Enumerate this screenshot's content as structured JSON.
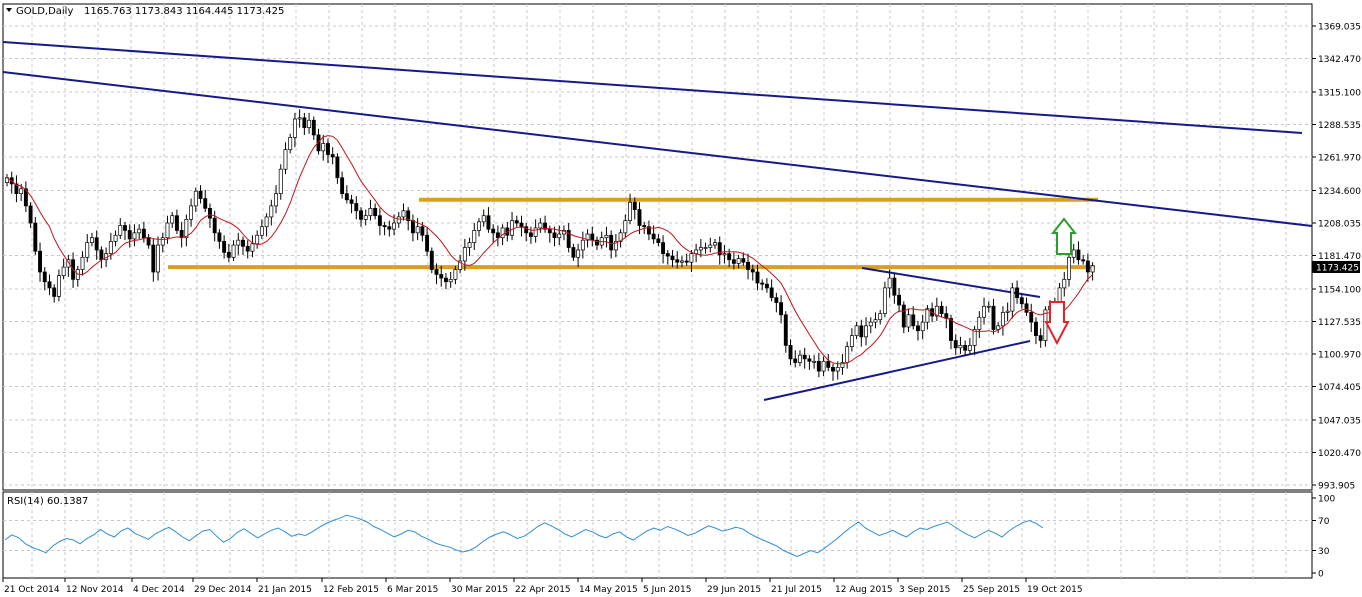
{
  "window": {
    "symbol": "GOLD,Daily",
    "ohlc": "1165.763 1173.843 1164.445 1173.425",
    "collapse_icon": "triangle-down-icon"
  },
  "chart_data": [
    {
      "type": "candlestick",
      "title": "GOLD,Daily",
      "ylim": [
        993.905,
        1377
      ],
      "price_ticks": [
        "1369.035",
        "1342.470",
        "1315.100",
        "1288.535",
        "1261.970",
        "1234.600",
        "1208.035",
        "1181.470",
        "1154.100",
        "1127.535",
        "1100.970",
        "1074.405",
        "1047.035",
        "1020.470",
        "993.905"
      ],
      "current_price": "1173.425",
      "x_ticks": [
        "21 Oct 2014",
        "12 Nov 2014",
        "4 Dec 2014",
        "29 Dec 2014",
        "21 Jan 2015",
        "12 Feb 2015",
        "6 Mar 2015",
        "30 Mar 2015",
        "22 Apr 2015",
        "14 May 2015",
        "5 Jun 2015",
        "29 Jun 2015",
        "21 Jul 2015",
        "12 Aug 2015",
        "3 Sep 2015",
        "25 Sep 2015",
        "19 Oct 2015"
      ],
      "grid": true,
      "closes": [
        1245,
        1240,
        1232,
        1236,
        1222,
        1208,
        1185,
        1168,
        1160,
        1155,
        1148,
        1165,
        1172,
        1178,
        1162,
        1170,
        1180,
        1192,
        1196,
        1186,
        1178,
        1183,
        1193,
        1198,
        1206,
        1202,
        1195,
        1200,
        1203,
        1196,
        1190,
        1168,
        1190,
        1196,
        1208,
        1214,
        1202,
        1196,
        1211,
        1222,
        1234,
        1228,
        1220,
        1212,
        1200,
        1193,
        1184,
        1180,
        1190,
        1194,
        1189,
        1185,
        1191,
        1198,
        1205,
        1213,
        1222,
        1232,
        1252,
        1268,
        1278,
        1293,
        1294,
        1286,
        1292,
        1280,
        1267,
        1273,
        1264,
        1262,
        1245,
        1232,
        1227,
        1224,
        1218,
        1211,
        1214,
        1220,
        1214,
        1206,
        1205,
        1203,
        1208,
        1213,
        1218,
        1210,
        1200,
        1205,
        1198,
        1185,
        1170,
        1166,
        1163,
        1160,
        1162,
        1170,
        1177,
        1188,
        1192,
        1202,
        1209,
        1214,
        1203,
        1200,
        1196,
        1204,
        1198,
        1210,
        1208,
        1205,
        1200,
        1197,
        1204,
        1208,
        1203,
        1200,
        1196,
        1199,
        1202,
        1188,
        1180,
        1186,
        1194,
        1199,
        1194,
        1190,
        1196,
        1198,
        1186,
        1193,
        1200,
        1210,
        1225,
        1219,
        1206,
        1205,
        1199,
        1195,
        1192,
        1183,
        1181,
        1178,
        1176,
        1177,
        1176,
        1183,
        1186,
        1188,
        1188,
        1190,
        1192,
        1182,
        1183,
        1178,
        1175,
        1179,
        1176,
        1170,
        1168,
        1159,
        1158,
        1155,
        1147,
        1143,
        1133,
        1108,
        1097,
        1094,
        1100,
        1097,
        1095,
        1095,
        1087,
        1095,
        1090,
        1087,
        1090,
        1094,
        1107,
        1116,
        1124,
        1115,
        1124,
        1127,
        1129,
        1134,
        1155,
        1163,
        1149,
        1141,
        1123,
        1133,
        1124,
        1120,
        1127,
        1138,
        1132,
        1140,
        1134,
        1130,
        1112,
        1106,
        1108,
        1104,
        1108,
        1121,
        1131,
        1140,
        1140,
        1121,
        1124,
        1135,
        1136,
        1155,
        1147,
        1142,
        1135,
        1127,
        1116,
        1112,
        1137,
        1140,
        1140,
        1155,
        1162,
        1180,
        1186,
        1178,
        1177,
        1168,
        1173
      ],
      "ma_label": "",
      "horizontal_levels": [
        1227,
        1172
      ],
      "rsi": {
        "label": "RSI(14) 60.1387",
        "levels": [
          "100",
          "70",
          "30",
          "0"
        ],
        "values": [
          44,
          51,
          47,
          39,
          34,
          31,
          27,
          36,
          42,
          46,
          44,
          39,
          46,
          51,
          58,
          52,
          48,
          56,
          60,
          53,
          49,
          45,
          52,
          57,
          61,
          55,
          48,
          43,
          50,
          56,
          58,
          49,
          41,
          46,
          54,
          59,
          53,
          47,
          52,
          57,
          60,
          55,
          49,
          52,
          50,
          55,
          61,
          66,
          70,
          73,
          77,
          75,
          72,
          68,
          62,
          58,
          53,
          48,
          52,
          57,
          55,
          49,
          45,
          40,
          37,
          35,
          31,
          28,
          30,
          35,
          42,
          48,
          52,
          55,
          51,
          46,
          49,
          55,
          62,
          67,
          63,
          58,
          52,
          48,
          53,
          58,
          55,
          50,
          47,
          52,
          55,
          48,
          44,
          50,
          56,
          60,
          57,
          62,
          59,
          55,
          50,
          53,
          58,
          63,
          60,
          56,
          58,
          61,
          59,
          53,
          48,
          44,
          40,
          36,
          30,
          26,
          22,
          26,
          30,
          27,
          33,
          40,
          47,
          55,
          62,
          68,
          60,
          55,
          50,
          53,
          57,
          52,
          48,
          55,
          60,
          58,
          62,
          65,
          68,
          62,
          56,
          51,
          47,
          52,
          57,
          53,
          48,
          56,
          62,
          67,
          70,
          66,
          60
        ]
      },
      "arrows": [
        {
          "direction": "up",
          "color": "#2e9c2e"
        },
        {
          "direction": "down",
          "color": "#e0242b"
        }
      ]
    }
  ],
  "colors": {
    "up_candle": "#2a7a2a",
    "down_candle": "#000000",
    "ma": "#c0161c",
    "trendline": "#151a8a",
    "level": "#d9a01f",
    "rsi": "#2f8fd8"
  }
}
